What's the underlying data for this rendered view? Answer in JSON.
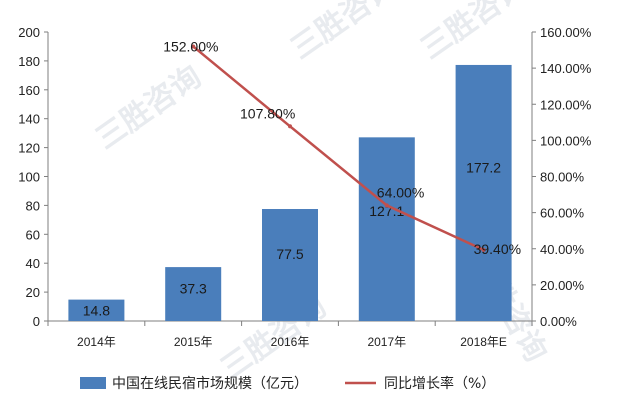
{
  "chart_data": {
    "type": "bar",
    "categories": [
      "2014年",
      "2015年",
      "2016年",
      "2017年",
      "2018年E"
    ],
    "series": [
      {
        "name": "中国在线民宿市场规模（亿元）",
        "type": "bar",
        "axis": "left",
        "values": [
          14.8,
          37.3,
          77.5,
          127.1,
          177.2
        ],
        "labels": [
          "14.8",
          "37.3",
          "77.5",
          "127.1",
          "177.2"
        ],
        "color": "#4a7ebb"
      },
      {
        "name": "同比增长率（%）",
        "type": "line",
        "axis": "right",
        "values": [
          null,
          152.0,
          107.8,
          64.0,
          39.4
        ],
        "labels": [
          "",
          "152.00%",
          "107.80%",
          "64.00%",
          "39.40%"
        ],
        "color": "#c0504d"
      }
    ],
    "ylim": [
      0,
      200
    ],
    "yticks": [
      "0",
      "20",
      "40",
      "60",
      "80",
      "100",
      "120",
      "140",
      "160",
      "180",
      "200"
    ],
    "y2lim": [
      0,
      160
    ],
    "y2ticks": [
      "0.00%",
      "20.00%",
      "40.00%",
      "60.00%",
      "80.00%",
      "100.00%",
      "120.00%",
      "140.00%",
      "160.00%"
    ],
    "legend_position": "bottom",
    "grid": false
  },
  "watermark_text": "三胜咨询"
}
